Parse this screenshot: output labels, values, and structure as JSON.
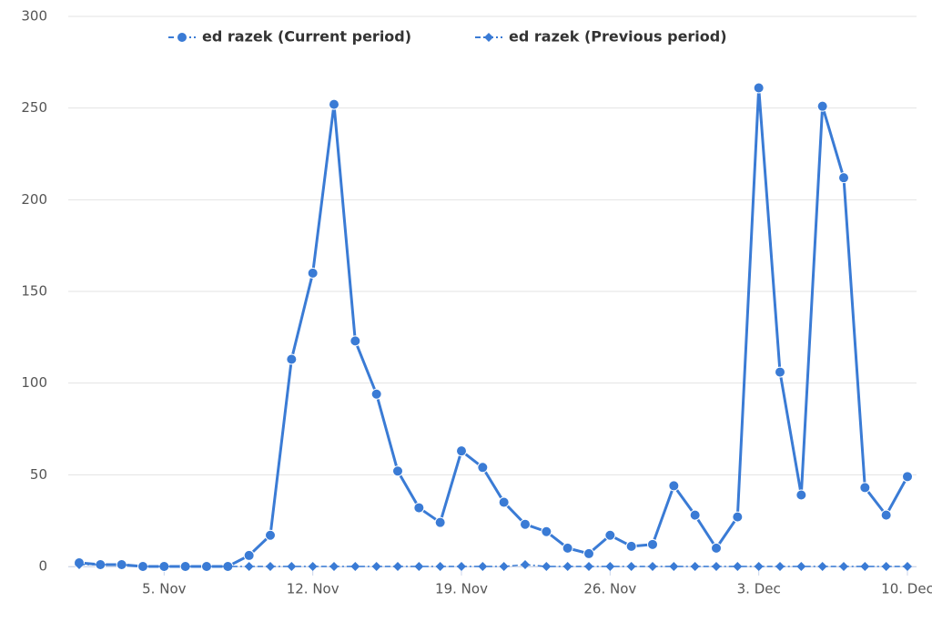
{
  "chart_data": {
    "type": "line",
    "categories": [
      null,
      null,
      null,
      null,
      "5. Nov",
      null,
      null,
      null,
      null,
      null,
      null,
      "12. Nov",
      null,
      null,
      null,
      null,
      null,
      null,
      "19. Nov",
      null,
      null,
      null,
      null,
      null,
      null,
      "26. Nov",
      null,
      null,
      null,
      null,
      null,
      null,
      "3. Dec",
      null,
      null,
      null,
      null,
      null,
      null,
      "10. Dec"
    ],
    "series": [
      {
        "name": "ed razek (Current period)",
        "color": "#3a7bd5",
        "marker": "circle",
        "dash": false,
        "values": [
          2,
          1,
          1,
          0,
          0,
          0,
          0,
          0,
          6,
          17,
          113,
          160,
          252,
          123,
          94,
          52,
          32,
          24,
          63,
          54,
          35,
          23,
          19,
          10,
          7,
          17,
          11,
          12,
          44,
          28,
          10,
          27,
          261,
          106,
          39,
          251,
          212,
          43,
          28,
          49
        ]
      },
      {
        "name": "ed razek (Previous period)",
        "color": "#3a7bd5",
        "marker": "diamond",
        "dash": true,
        "values": [
          1,
          1,
          1,
          0,
          0,
          0,
          0,
          0,
          0,
          0,
          0,
          0,
          0,
          0,
          0,
          0,
          0,
          0,
          0,
          0,
          0,
          1,
          0,
          0,
          0,
          0,
          0,
          0,
          0,
          0,
          0,
          0,
          0,
          0,
          0,
          0,
          0,
          0,
          0,
          0
        ]
      }
    ],
    "ylim": [
      0,
      300
    ],
    "yticks": [
      0,
      50,
      100,
      150,
      200,
      250,
      300
    ],
    "grid": true
  }
}
